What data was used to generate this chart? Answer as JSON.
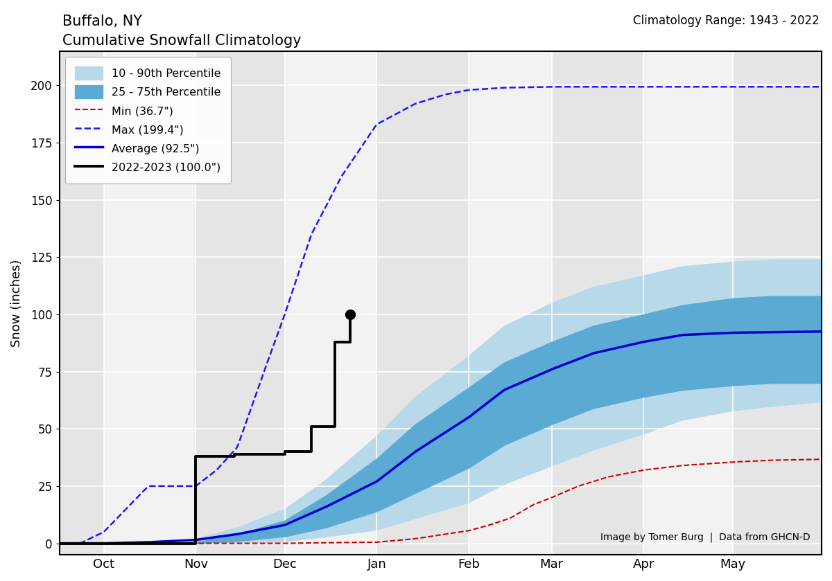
{
  "title_line1": "Buffalo, NY",
  "title_line2": "Cumulative Snowfall Climatology",
  "clim_range_text": "Climatology Range: 1943 - 2022",
  "ylabel": "Snow (inches)",
  "attribution": "Image by Tomer Burg  |  Data from GHCN-D",
  "ylim": [
    -5,
    215
  ],
  "yticks": [
    0,
    25,
    50,
    75,
    100,
    125,
    150,
    175,
    200
  ],
  "legend_labels": [
    "10 - 90th Percentile",
    "25 - 75th Percentile",
    "Min (36.7\")",
    "Max (199.4\")",
    "Average (92.5\")",
    "2022-2023 (100.0\")"
  ],
  "color_10_90": "#b8d9ea",
  "color_25_75": "#5aaad4",
  "color_min": "#cc0000",
  "color_max": "#1a1aff",
  "color_avg": "#0000cc",
  "color_current": "#000000",
  "bg_col_a": "#e5e5e5",
  "bg_col_b": "#f2f2f2",
  "x_min": 15,
  "x_max": 272,
  "month_tick_positions": [
    30,
    61,
    91,
    122,
    153,
    181,
    212,
    242
  ],
  "month_tick_labels": [
    "Oct",
    "Nov",
    "Dec",
    "Jan",
    "Feb",
    "Mar",
    "Apr",
    "May"
  ]
}
